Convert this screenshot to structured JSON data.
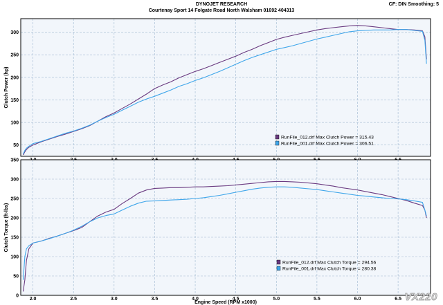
{
  "header": {
    "title": "DYNOJET RESEARCH",
    "subtitle": "Courtenay Sport 14 Folgate Road North Walsham 01692 404313",
    "cf": "CF: DIN  Smoothing: 5"
  },
  "watermark": "VX220",
  "colors": {
    "run012": "#6a3a80",
    "run001": "#3fa6ea",
    "plot_bg": "#f2f6fb",
    "grid": "#9fb8d0",
    "frame": "#000000"
  },
  "chart_data": [
    {
      "type": "line",
      "title": "",
      "xlabel": "",
      "ylabel": "Clutch Power (hp)",
      "xlim": [
        1.85,
        6.9
      ],
      "ylim": [
        25,
        330
      ],
      "xticks": [
        "2.0",
        "2.5",
        "3.0",
        "3.5",
        "4.0",
        "4.5",
        "5.0",
        "5.5",
        "6.0",
        "6.5"
      ],
      "yticks": [
        "50",
        "100",
        "150",
        "200",
        "250",
        "300"
      ],
      "grid": true,
      "legend_position": "bottom-right",
      "series": [
        {
          "name": "RunFile_012.drf Max Clutch Power = 315.43",
          "color_key": "run012",
          "x": [
            1.88,
            1.9,
            1.92,
            1.95,
            2.0,
            2.1,
            2.2,
            2.3,
            2.4,
            2.5,
            2.6,
            2.7,
            2.8,
            2.9,
            3.0,
            3.1,
            3.2,
            3.3,
            3.4,
            3.5,
            3.6,
            3.7,
            3.8,
            3.9,
            4.0,
            4.1,
            4.2,
            4.3,
            4.4,
            4.5,
            4.6,
            4.7,
            4.8,
            4.9,
            5.0,
            5.1,
            5.2,
            5.3,
            5.4,
            5.5,
            5.6,
            5.7,
            5.8,
            5.9,
            6.0,
            6.1,
            6.2,
            6.3,
            6.4,
            6.5,
            6.6,
            6.7,
            6.8,
            6.83,
            6.85
          ],
          "y": [
            28,
            35,
            40,
            45,
            50,
            57,
            63,
            69,
            74,
            80,
            86,
            93,
            103,
            113,
            121,
            131,
            141,
            152,
            163,
            175,
            183,
            190,
            199,
            206,
            213,
            219,
            226,
            233,
            240,
            247,
            255,
            262,
            270,
            277,
            284,
            289,
            293,
            297,
            301,
            305,
            308,
            310,
            312,
            314,
            315,
            314,
            312,
            310,
            308,
            306,
            306,
            305,
            303,
            290,
            240
          ]
        },
        {
          "name": "RunFile_001.drf Max Clutch Power = 306.51",
          "color_key": "run001",
          "x": [
            1.88,
            1.9,
            1.92,
            1.95,
            2.0,
            2.1,
            2.2,
            2.3,
            2.4,
            2.5,
            2.6,
            2.7,
            2.8,
            2.9,
            3.0,
            3.1,
            3.2,
            3.3,
            3.4,
            3.5,
            3.6,
            3.7,
            3.8,
            3.9,
            4.0,
            4.1,
            4.2,
            4.3,
            4.4,
            4.5,
            4.6,
            4.7,
            4.8,
            4.9,
            5.0,
            5.1,
            5.2,
            5.3,
            5.4,
            5.5,
            5.6,
            5.7,
            5.8,
            5.9,
            6.0,
            6.1,
            6.2,
            6.3,
            6.4,
            6.5,
            6.6,
            6.7,
            6.8,
            6.83,
            6.85
          ],
          "y": [
            30,
            38,
            43,
            47,
            53,
            58,
            64,
            70,
            76,
            81,
            87,
            94,
            103,
            111,
            118,
            127,
            136,
            145,
            152,
            158,
            165,
            172,
            180,
            186,
            193,
            199,
            206,
            213,
            221,
            229,
            237,
            244,
            250,
            256,
            262,
            266,
            270,
            275,
            280,
            285,
            289,
            293,
            297,
            301,
            303,
            304,
            305,
            305,
            305,
            306,
            306,
            304,
            302,
            282,
            230
          ]
        }
      ]
    },
    {
      "type": "line",
      "title": "",
      "xlabel": "Engine Speed (RPM x1000)",
      "ylabel": "Clutch Torque (ft-lbs)",
      "xlim": [
        1.85,
        6.9
      ],
      "ylim": [
        0,
        350
      ],
      "xticks": [
        "2.0",
        "2.5",
        "3.0",
        "3.5",
        "4.0",
        "4.5",
        "5.0",
        "5.5",
        "6.0",
        "6.5"
      ],
      "yticks": [
        "0",
        "50",
        "100",
        "150",
        "200",
        "250",
        "300",
        "350"
      ],
      "grid": true,
      "legend_position": "bottom-right",
      "series": [
        {
          "name": "RunFile_012.drf Max Clutch Torque = 294.56",
          "color_key": "run012",
          "x": [
            1.88,
            1.9,
            1.92,
            1.95,
            2.0,
            2.1,
            2.2,
            2.3,
            2.4,
            2.5,
            2.6,
            2.7,
            2.8,
            2.9,
            3.0,
            3.1,
            3.2,
            3.3,
            3.4,
            3.5,
            3.6,
            3.7,
            3.8,
            3.9,
            4.0,
            4.1,
            4.2,
            4.3,
            4.4,
            4.5,
            4.6,
            4.7,
            4.8,
            4.9,
            5.0,
            5.1,
            5.2,
            5.3,
            5.4,
            5.5,
            5.6,
            5.7,
            5.8,
            5.9,
            6.0,
            6.1,
            6.2,
            6.3,
            6.4,
            6.5,
            6.6,
            6.7,
            6.8,
            6.83,
            6.85
          ],
          "y": [
            10,
            40,
            90,
            120,
            135,
            140,
            147,
            153,
            160,
            167,
            175,
            190,
            205,
            215,
            222,
            237,
            250,
            264,
            272,
            276,
            277,
            278,
            278,
            279,
            280,
            280,
            281,
            282,
            283,
            285,
            287,
            289,
            291,
            293,
            294,
            294,
            293,
            292,
            290,
            288,
            285,
            282,
            278,
            275,
            272,
            268,
            264,
            260,
            255,
            250,
            245,
            238,
            232,
            220,
            200
          ]
        },
        {
          "name": "RunFile_001.drf Max Clutch Torque = 280.38",
          "color_key": "run001",
          "x": [
            1.88,
            1.9,
            1.92,
            1.95,
            2.0,
            2.1,
            2.2,
            2.3,
            2.4,
            2.5,
            2.6,
            2.7,
            2.8,
            2.9,
            3.0,
            3.1,
            3.2,
            3.3,
            3.4,
            3.5,
            3.6,
            3.7,
            3.8,
            3.9,
            4.0,
            4.1,
            4.2,
            4.3,
            4.4,
            4.5,
            4.6,
            4.7,
            4.8,
            4.9,
            5.0,
            5.1,
            5.2,
            5.3,
            5.4,
            5.5,
            5.6,
            5.7,
            5.8,
            5.9,
            6.0,
            6.1,
            6.2,
            6.3,
            6.4,
            6.5,
            6.6,
            6.7,
            6.8,
            6.83,
            6.85
          ],
          "y": [
            40,
            100,
            120,
            128,
            135,
            140,
            146,
            153,
            160,
            168,
            178,
            190,
            200,
            206,
            210,
            220,
            230,
            238,
            243,
            244,
            245,
            246,
            247,
            248,
            250,
            252,
            255,
            258,
            262,
            266,
            270,
            274,
            277,
            279,
            280,
            280,
            279,
            277,
            275,
            273,
            270,
            267,
            264,
            261,
            258,
            256,
            254,
            252,
            250,
            249,
            247,
            244,
            240,
            220,
            205
          ]
        }
      ]
    }
  ]
}
